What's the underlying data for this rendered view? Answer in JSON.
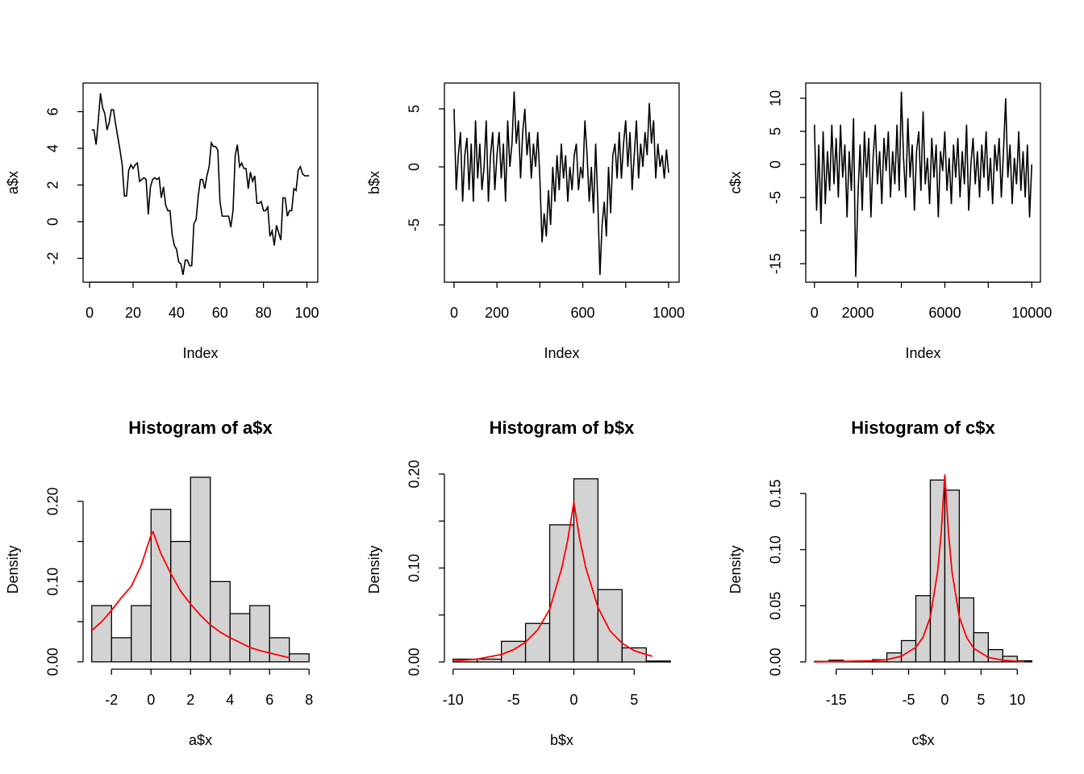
{
  "chart_data": [
    {
      "type": "line",
      "xlabel": "Index",
      "ylabel": "a$x",
      "color": "#000000",
      "xlim": [
        -3,
        105
      ],
      "ylim": [
        -3.3,
        7.56
      ],
      "xticks": [
        0,
        20,
        40,
        60,
        80,
        100
      ],
      "yticks": [
        -2,
        0,
        2,
        4,
        6
      ],
      "x": [
        1,
        2,
        3,
        4,
        5,
        6,
        7,
        8,
        9,
        10,
        11,
        12,
        13,
        14,
        15,
        16,
        17,
        18,
        19,
        20,
        21,
        22,
        23,
        24,
        25,
        26,
        27,
        28,
        29,
        30,
        31,
        32,
        33,
        34,
        35,
        36,
        37,
        38,
        39,
        40,
        41,
        42,
        43,
        44,
        45,
        46,
        47,
        48,
        49,
        50,
        51,
        52,
        53,
        54,
        55,
        56,
        57,
        58,
        59,
        60,
        61,
        62,
        63,
        64,
        65,
        66,
        67,
        68,
        69,
        70,
        71,
        72,
        73,
        74,
        75,
        76,
        77,
        78,
        79,
        80,
        81,
        82,
        83,
        84,
        85,
        86,
        87,
        88,
        89,
        90,
        91,
        92,
        93,
        94,
        95,
        96,
        97,
        98,
        99,
        100,
        101
      ],
      "values": [
        5.0,
        5.0,
        4.2,
        5.5,
        7.0,
        6.2,
        5.9,
        5.0,
        5.4,
        6.1,
        6.1,
        5.3,
        4.6,
        3.9,
        3.1,
        1.4,
        1.4,
        2.8,
        3.1,
        2.9,
        3.1,
        3.2,
        2.2,
        2.3,
        2.4,
        2.3,
        0.4,
        1.9,
        2.3,
        2.4,
        2.3,
        2.4,
        1.3,
        1.9,
        0.9,
        0.6,
        0.6,
        -0.7,
        -1.3,
        -1.5,
        -2.2,
        -2.3,
        -2.9,
        -2.1,
        -2.1,
        -2.4,
        -2.4,
        -0.1,
        0.1,
        1.4,
        2.3,
        2.3,
        1.8,
        2.5,
        3.0,
        4.3,
        4.1,
        4.1,
        3.9,
        1.1,
        0.3,
        0.3,
        0.3,
        0.3,
        -0.3,
        0.6,
        3.6,
        4.2,
        3.0,
        3.2,
        2.9,
        2.9,
        1.8,
        2.7,
        2.2,
        2.5,
        1.0,
        1.0,
        1.1,
        0.6,
        0.6,
        0.8,
        -0.8,
        -0.5,
        -1.3,
        -0.2,
        -0.6,
        -1.0,
        1.3,
        1.3,
        0.3,
        0.6,
        0.6,
        1.8,
        1.7,
        2.8,
        3.0,
        2.6,
        2.5,
        2.5,
        2.5
      ]
    },
    {
      "type": "line",
      "xlabel": "Index",
      "ylabel": "b$x",
      "color": "#000000",
      "xlim": [
        -45,
        1049
      ],
      "ylim": [
        -9.93,
        7.22
      ],
      "xticks": [
        0,
        200,
        {
          "value": 400,
          "label": null
        },
        600,
        {
          "value": 800,
          "label": null
        },
        1000
      ],
      "yticks": [
        -5,
        0,
        5
      ],
      "x": [
        0,
        10,
        20,
        30,
        40,
        50,
        60,
        70,
        80,
        90,
        100,
        110,
        120,
        130,
        140,
        150,
        160,
        170,
        180,
        190,
        200,
        210,
        220,
        230,
        240,
        250,
        260,
        270,
        280,
        290,
        300,
        310,
        320,
        330,
        340,
        350,
        360,
        370,
        380,
        390,
        400,
        410,
        420,
        430,
        440,
        450,
        460,
        470,
        480,
        490,
        500,
        510,
        520,
        530,
        540,
        550,
        560,
        570,
        580,
        590,
        600,
        610,
        620,
        630,
        640,
        650,
        660,
        670,
        680,
        690,
        700,
        710,
        720,
        730,
        740,
        750,
        760,
        770,
        780,
        790,
        800,
        810,
        820,
        830,
        840,
        850,
        860,
        870,
        880,
        890,
        900,
        910,
        920,
        930,
        940,
        950,
        960,
        970,
        980,
        990,
        1000
      ],
      "values": [
        5.0,
        -2,
        1,
        3,
        -3,
        1,
        2.5,
        -2,
        2,
        -3,
        4,
        -1,
        2,
        -2,
        0,
        4,
        -3,
        1,
        3,
        -2,
        1,
        3,
        -1,
        2,
        -3,
        4,
        0,
        2,
        6.5,
        2,
        4,
        -1,
        3,
        5,
        1,
        3,
        -1,
        2,
        0,
        3,
        -1,
        -6.5,
        -4,
        -6,
        -2,
        -5,
        0,
        -3,
        1,
        -2,
        2,
        -1,
        1,
        -3,
        0,
        -2,
        1,
        2,
        -2,
        0,
        -1,
        4,
        1,
        -3,
        0,
        -4,
        2,
        -3,
        -9.3,
        -5,
        -3,
        -6,
        0,
        -4,
        1,
        2,
        -1,
        3,
        -1,
        2,
        4,
        0,
        3,
        -2,
        1,
        4,
        -1,
        2,
        0,
        3,
        1,
        5.5,
        2,
        4,
        -1,
        2,
        0,
        1,
        -1,
        1.5,
        -0.5
      ]
    },
    {
      "type": "line",
      "xlabel": "Index",
      "ylabel": "c$x",
      "color": "#000000",
      "xlim": [
        -400,
        10400
      ],
      "ylim": [
        -17.8,
        12.3
      ],
      "xticks": [
        0,
        2000,
        {
          "value": 4000,
          "label": null
        },
        6000,
        {
          "value": 8000,
          "label": null
        },
        10000
      ],
      "yticks": [
        -15,
        {
          "value": -10,
          "label": null
        },
        -5,
        0,
        5,
        10
      ],
      "x": [
        0,
        100,
        200,
        300,
        400,
        500,
        600,
        700,
        800,
        900,
        1000,
        1100,
        1200,
        1300,
        1400,
        1500,
        1600,
        1700,
        1800,
        1900,
        2000,
        2100,
        2200,
        2300,
        2400,
        2500,
        2600,
        2700,
        2800,
        2900,
        3000,
        3100,
        3200,
        3300,
        3400,
        3500,
        3600,
        3700,
        3800,
        3900,
        4000,
        4100,
        4200,
        4300,
        4400,
        4500,
        4600,
        4700,
        4800,
        4900,
        5000,
        5100,
        5200,
        5300,
        5400,
        5500,
        5600,
        5700,
        5800,
        5900,
        6000,
        6100,
        6200,
        6300,
        6400,
        6500,
        6600,
        6700,
        6800,
        6900,
        7000,
        7100,
        7200,
        7300,
        7400,
        7500,
        7600,
        7700,
        7800,
        7900,
        8000,
        8100,
        8200,
        8300,
        8400,
        8500,
        8600,
        8700,
        8800,
        8900,
        9000,
        9100,
        9200,
        9300,
        9400,
        9500,
        9600,
        9700,
        9800,
        9900,
        10000
      ],
      "values": [
        6,
        -7,
        3,
        -9,
        5,
        -6,
        2,
        -4,
        6,
        -3,
        4,
        -5,
        6,
        -2,
        3,
        -8,
        2,
        -4,
        7,
        -17,
        -5,
        3,
        -7,
        5,
        -2,
        4,
        -8,
        1,
        6,
        -3,
        2,
        -6,
        4,
        -1,
        5,
        -5,
        2,
        -3,
        6,
        -4,
        11,
        1,
        -5,
        7,
        -2,
        3,
        -7,
        2,
        5,
        -4,
        8,
        -3,
        1,
        -6,
        4,
        -2,
        3,
        -8,
        2,
        -1,
        5,
        -4,
        1,
        -6,
        3,
        -2,
        4,
        -5,
        2,
        -3,
        6,
        -7,
        0,
        4,
        -3,
        2,
        -5,
        3,
        -2,
        5,
        -4,
        1,
        -6,
        3,
        -1,
        4,
        -5,
        2,
        10,
        -2,
        3,
        -6,
        1,
        -3,
        5,
        -4,
        2,
        -5,
        3,
        -8,
        0
      ]
    },
    {
      "type": "histogram",
      "title": "Histogram of a$x",
      "xlabel": "a$x",
      "ylabel": "Density",
      "color": "#d3d3d3",
      "xlim": [
        -3.44,
        8.44
      ],
      "ylim": [
        -0.0092,
        0.239
      ],
      "xticks": [
        -2,
        0,
        2,
        4,
        6,
        8
      ],
      "yticks": [
        {
          "value": 0,
          "label": "0.00"
        },
        {
          "value": 0.05,
          "label": null
        },
        {
          "value": 0.1,
          "label": "0.10"
        },
        {
          "value": 0.15,
          "label": null
        },
        {
          "value": 0.2,
          "label": "0.20"
        }
      ],
      "bins": [
        -3,
        -2,
        -1,
        0,
        1,
        2,
        3,
        4,
        5,
        6,
        7,
        8
      ],
      "values": [
        0.07,
        0.03,
        0.07,
        0.19,
        0.15,
        0.23,
        0.1,
        0.06,
        0.07,
        0.03,
        0.01
      ],
      "density_curve": {
        "color": "#ff0000",
        "x": [
          -3,
          -2.5,
          -2,
          -1.5,
          -1,
          -0.5,
          0,
          0.1,
          0.5,
          1,
          1.5,
          2,
          2.5,
          3,
          3.5,
          4,
          4.5,
          5,
          5.5,
          6,
          6.5,
          7
        ],
        "values": [
          0.039,
          0.05,
          0.064,
          0.08,
          0.094,
          0.12,
          0.158,
          0.162,
          0.135,
          0.11,
          0.088,
          0.072,
          0.058,
          0.046,
          0.037,
          0.03,
          0.024,
          0.018,
          0.014,
          0.011,
          0.008,
          0.005
        ]
      }
    },
    {
      "type": "histogram",
      "title": "Histogram of b$x",
      "xlabel": "b$x",
      "ylabel": "Density",
      "color": "#d3d3d3",
      "xlim": [
        -10.72,
        8.72
      ],
      "ylim": [
        -0.0077,
        0.2043
      ],
      "xticks": [
        -10,
        -5,
        0,
        5
      ],
      "yticks": [
        {
          "value": 0,
          "label": "0.00"
        },
        {
          "value": 0.05,
          "label": null
        },
        {
          "value": 0.1,
          "label": "0.10"
        },
        {
          "value": 0.15,
          "label": null
        },
        {
          "value": 0.2,
          "label": "0.20"
        }
      ],
      "bins": [
        -10,
        -8,
        -6,
        -4,
        -2,
        0,
        2,
        4,
        6,
        8
      ],
      "values": [
        0.003,
        0.003,
        0.022,
        0.041,
        0.146,
        0.195,
        0.077,
        0.015,
        0.001
      ],
      "density_curve": {
        "color": "#ff0000",
        "x": [
          -10,
          -8,
          -6,
          -5,
          -4,
          -3,
          -2,
          -1,
          -0.5,
          0,
          0.5,
          1,
          2,
          3,
          4,
          5,
          6,
          6.5
        ],
        "values": [
          0.001,
          0.003,
          0.008,
          0.013,
          0.021,
          0.034,
          0.056,
          0.1,
          0.13,
          0.17,
          0.13,
          0.1,
          0.058,
          0.033,
          0.02,
          0.012,
          0.008,
          0.006
        ]
      }
    },
    {
      "type": "histogram",
      "title": "Histogram of c$x",
      "xlabel": "c$x",
      "ylabel": "Density",
      "color": "#d3d3d3",
      "xlim": [
        -19.2,
        13.2
      ],
      "ylim": [
        -0.0065,
        0.1709
      ],
      "xticks": [
        -15,
        {
          "value": -10,
          "label": null
        },
        -5,
        0,
        5,
        10
      ],
      "yticks": [
        {
          "value": 0,
          "label": "0.00"
        },
        {
          "value": 0.05,
          "label": "0.05"
        },
        {
          "value": 0.1,
          "label": "0.10"
        },
        {
          "value": 0.15,
          "label": "0.15"
        }
      ],
      "bins": [
        -18,
        -16,
        -14,
        -12,
        -10,
        -8,
        -6,
        -4,
        -2,
        0,
        2,
        4,
        6,
        8,
        10,
        12
      ],
      "values": [
        0.0005,
        0.0015,
        0.0005,
        0.0005,
        0.002,
        0.008,
        0.019,
        0.059,
        0.162,
        0.153,
        0.057,
        0.026,
        0.011,
        0.005,
        0.001
      ],
      "density_curve": {
        "color": "#ff0000",
        "x": [
          -18,
          -10,
          -8,
          -6,
          -4,
          -3,
          -2,
          -1,
          -0.5,
          0,
          0.5,
          1,
          2,
          3,
          4,
          6,
          8,
          10,
          11
        ],
        "values": [
          0.0,
          0.001,
          0.002,
          0.005,
          0.013,
          0.022,
          0.04,
          0.08,
          0.115,
          0.167,
          0.115,
          0.08,
          0.04,
          0.022,
          0.012,
          0.004,
          0.0015,
          0.0005,
          0.0002
        ]
      }
    }
  ]
}
